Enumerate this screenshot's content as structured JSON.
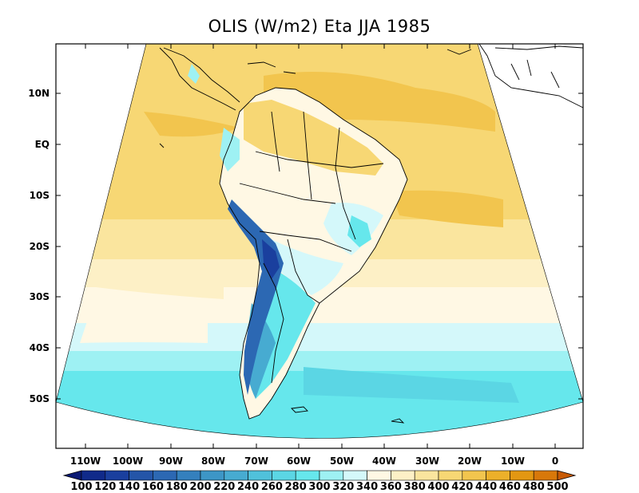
{
  "title": "OLIS (W/m2) Eta JJA 1985",
  "lat_labels": [
    "10N",
    "EQ",
    "10S",
    "20S",
    "30S",
    "40S",
    "50S"
  ],
  "lon_labels": [
    "110W",
    "100W",
    "90W",
    "80W",
    "70W",
    "60W",
    "50W",
    "40W",
    "30W",
    "20W",
    "10W",
    "0"
  ],
  "colorbar": {
    "values": [
      100,
      120,
      140,
      160,
      180,
      200,
      220,
      240,
      260,
      280,
      300,
      320,
      340,
      360,
      380,
      400,
      420,
      440,
      460,
      480,
      500
    ],
    "colors": [
      "#0b1a74",
      "#102a8a",
      "#1a3f9e",
      "#2455a8",
      "#2c68b3",
      "#3480bd",
      "#3d96c6",
      "#47abd1",
      "#50c1db",
      "#5bd6e4",
      "#66e7ec",
      "#9ef1f3",
      "#d4f8fa",
      "#fff8e4",
      "#fdf0c6",
      "#fae59e",
      "#f7d774",
      "#f2c54e",
      "#ecb02a",
      "#e39712",
      "#d8780a",
      "#c85b06"
    ]
  }
}
